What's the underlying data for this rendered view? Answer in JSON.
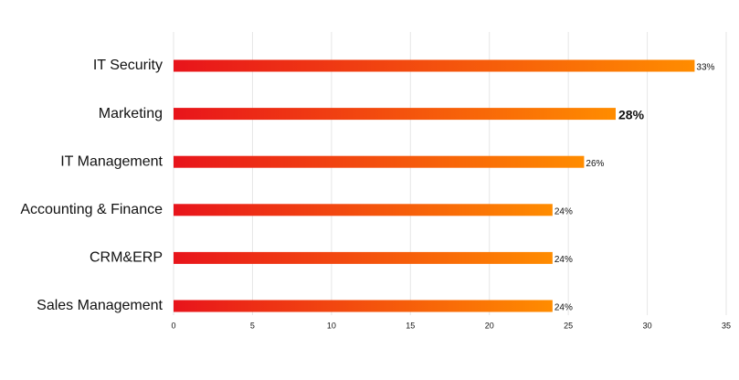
{
  "chart_data": {
    "type": "bar",
    "orientation": "horizontal",
    "categories": [
      "IT Security",
      "Marketing",
      "IT Management",
      "Accounting & Finance",
      "CRM&ERP",
      "Sales Management"
    ],
    "values": [
      33,
      28,
      26,
      24,
      24,
      24
    ],
    "value_labels": [
      "33%",
      "28%",
      "26%",
      "24%",
      "24%",
      "24%"
    ],
    "emphasized_category": "Marketing",
    "color_start": "#e8141b",
    "color_end": "#ff8c00",
    "xlim": [
      0,
      35
    ],
    "xticks": [
      0,
      5,
      10,
      15,
      20,
      25,
      30,
      35
    ],
    "grid": true
  }
}
